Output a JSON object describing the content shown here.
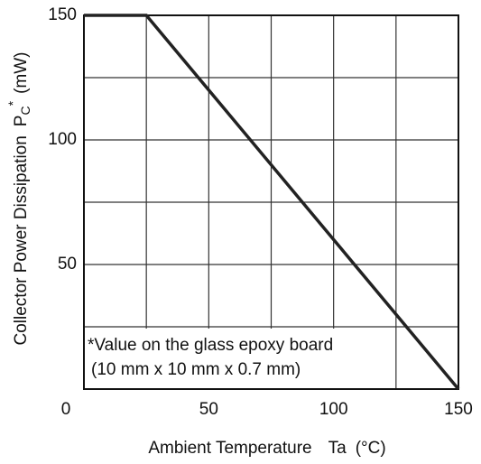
{
  "chart_data": {
    "type": "line",
    "series": [
      {
        "name": null,
        "color": "#222222",
        "x": [
          0,
          25,
          150
        ],
        "values": [
          150,
          150,
          0
        ]
      }
    ],
    "xlim": [
      0,
      150
    ],
    "ylim": [
      0,
      150
    ],
    "xticks": [
      0,
      50,
      100,
      150
    ],
    "yticks": [
      50,
      100,
      150
    ],
    "minor_xticks": [
      25,
      75,
      125
    ],
    "minor_yticks": [
      25,
      75,
      125
    ],
    "grid": true,
    "xlabel": "Ambient Temperature",
    "xlabel_symbol": "Ta",
    "xlabel_unit": "(°C)",
    "ylabel": "Collector Power Dissipation",
    "ylabel_symbol": "P",
    "ylabel_sub": "C",
    "ylabel_sup": "*",
    "ylabel_unit": "(mW)",
    "annotations": [
      "*Value on the glass epoxy board",
      "(10 mm x 10 mm x 0.7 mm)"
    ]
  }
}
